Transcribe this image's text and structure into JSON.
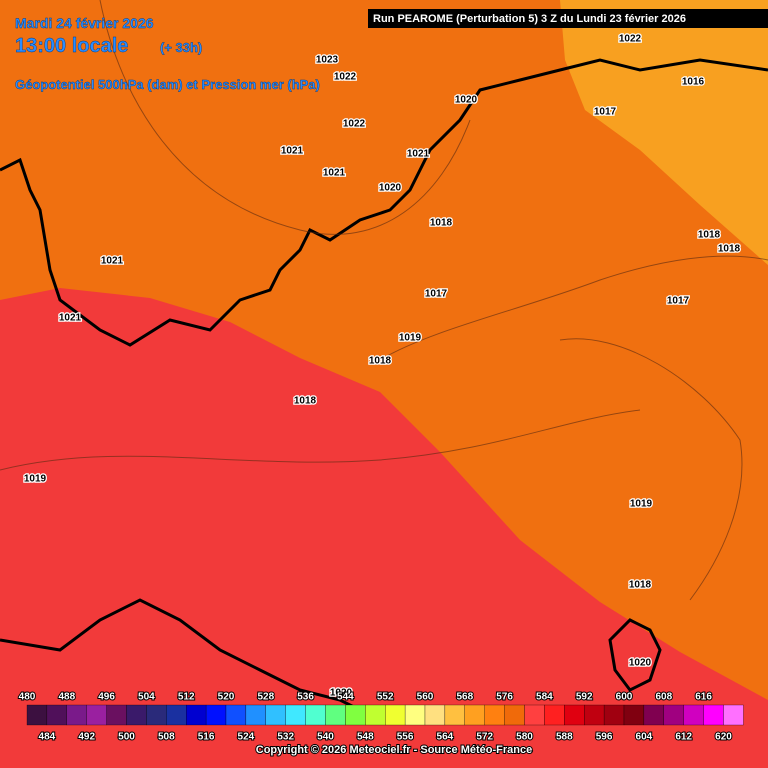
{
  "header": {
    "date": "Mardi 24 février 2026",
    "time": "13:00 locale",
    "lead": "(+ 33h)",
    "field": "Géopotentiel 500hPa (dam) et Pression mer (hPa)",
    "run": "Run PEAROME (Perturbation 5) 3 Z du Lundi 23 février 2026"
  },
  "pressure_labels": [
    "1023",
    "1022",
    "1022",
    "1016",
    "1020",
    "1017",
    "1022",
    "1021",
    "1021",
    "1021",
    "1020",
    "1018",
    "1018",
    "1018",
    "1021",
    "1017",
    "1017",
    "1021",
    "1019",
    "1018",
    "1018",
    "1019",
    "1019",
    "1018",
    "1020",
    "1020"
  ],
  "legend": {
    "levels": [
      "480",
      "484",
      "488",
      "492",
      "496",
      "500",
      "504",
      "508",
      "512",
      "516",
      "520",
      "524",
      "528",
      "532",
      "536",
      "540",
      "544",
      "548",
      "552",
      "556",
      "560",
      "564",
      "568",
      "572",
      "576",
      "580",
      "584",
      "588",
      "592",
      "596",
      "600",
      "604",
      "608",
      "612",
      "616",
      "620"
    ],
    "colors": [
      "#3c1040",
      "#50105a",
      "#7a1a8a",
      "#9a20a0",
      "#6a1060",
      "#3a1a6a",
      "#2a2a7a",
      "#1a30a0",
      "#0000d0",
      "#0010ff",
      "#1050ff",
      "#2090ff",
      "#30c0ff",
      "#40e8ff",
      "#50ffd0",
      "#60ff80",
      "#80ff40",
      "#c0ff30",
      "#f0ff30",
      "#ffff80",
      "#ffe080",
      "#ffc040",
      "#ffa020",
      "#ff8010",
      "#f06a0a",
      "#ff4040",
      "#ff2020",
      "#e00010",
      "#c00010",
      "#a00010",
      "#800010",
      "#800050",
      "#a00080",
      "#d000c0",
      "#ff00ff",
      "#ff70ff"
    ]
  },
  "copyright": "Copyright © 2026 Meteociel.fr - Source Météo-France"
}
